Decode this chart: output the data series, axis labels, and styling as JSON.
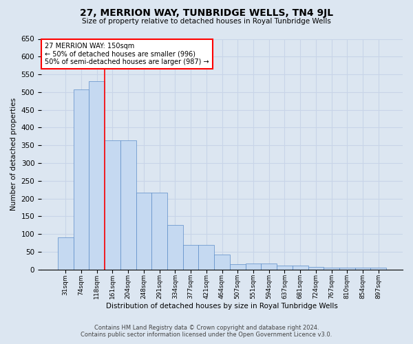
{
  "title": "27, MERRION WAY, TUNBRIDGE WELLS, TN4 9JL",
  "subtitle": "Size of property relative to detached houses in Royal Tunbridge Wells",
  "xlabel": "Distribution of detached houses by size in Royal Tunbridge Wells",
  "ylabel": "Number of detached properties",
  "footer_line1": "Contains HM Land Registry data © Crown copyright and database right 2024.",
  "footer_line2": "Contains public sector information licensed under the Open Government Licence v3.0.",
  "categories": [
    "31sqm",
    "74sqm",
    "118sqm",
    "161sqm",
    "204sqm",
    "248sqm",
    "291sqm",
    "334sqm",
    "377sqm",
    "421sqm",
    "464sqm",
    "507sqm",
    "551sqm",
    "594sqm",
    "637sqm",
    "681sqm",
    "724sqm",
    "767sqm",
    "810sqm",
    "854sqm",
    "897sqm"
  ],
  "values": [
    90,
    507,
    530,
    365,
    365,
    217,
    217,
    125,
    70,
    70,
    42,
    16,
    18,
    18,
    11,
    11,
    8,
    5,
    5,
    6,
    5
  ],
  "bar_color": "#c5d9f1",
  "bar_edge_color": "#5b8cc8",
  "grid_color": "#c8d4e8",
  "background_color": "#dce6f1",
  "annotation_text": "27 MERRION WAY: 150sqm\n← 50% of detached houses are smaller (996)\n50% of semi-detached houses are larger (987) →",
  "vline_x_index": 2.5,
  "annotation_box_color": "white",
  "annotation_box_edge_color": "red",
  "vline_color": "red",
  "ylim": [
    0,
    650
  ],
  "yticks": [
    0,
    50,
    100,
    150,
    200,
    250,
    300,
    350,
    400,
    450,
    500,
    550,
    600,
    650
  ]
}
